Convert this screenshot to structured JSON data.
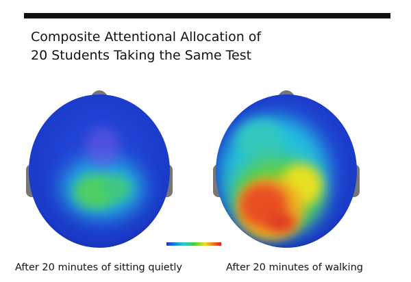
{
  "header": {
    "title_lines": [
      "Composite Attentional Allocation of",
      "20 Students Taking the Same Test"
    ]
  },
  "panels": [
    {
      "caption": "After 20 minutes of sitting quietly"
    },
    {
      "caption": "After 20 minutes of walking"
    }
  ]
}
